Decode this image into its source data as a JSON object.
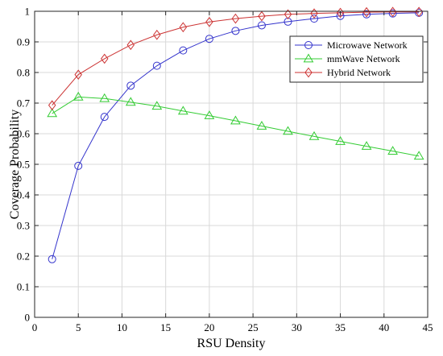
{
  "chart_data": {
    "type": "line",
    "title": "",
    "xlabel": "RSU Density",
    "ylabel": "Coverage Probability",
    "xlim": [
      0,
      45
    ],
    "ylim": [
      0,
      1
    ],
    "xticks": [
      0,
      5,
      10,
      15,
      20,
      25,
      30,
      35,
      40,
      45
    ],
    "yticks": [
      0,
      0.1,
      0.2,
      0.3,
      0.4,
      0.5,
      0.6,
      0.7,
      0.8,
      0.9,
      1
    ],
    "grid": true,
    "legend_position": "top-right",
    "x": [
      2,
      5,
      8,
      11,
      14,
      17,
      20,
      23,
      26,
      29,
      32,
      35,
      38,
      41,
      44
    ],
    "series": [
      {
        "name": "Microwave Network",
        "color": "#3333cc",
        "marker": "circle",
        "values": [
          0.19,
          0.495,
          0.655,
          0.757,
          0.822,
          0.872,
          0.91,
          0.936,
          0.954,
          0.966,
          0.976,
          0.985,
          0.99,
          0.993,
          0.995
        ]
      },
      {
        "name": "mmWave Network",
        "color": "#33cc33",
        "marker": "triangle",
        "values": [
          0.666,
          0.72,
          0.715,
          0.703,
          0.69,
          0.674,
          0.659,
          0.642,
          0.625,
          0.608,
          0.591,
          0.575,
          0.559,
          0.543,
          0.527
        ]
      },
      {
        "name": "Hybrid Network",
        "color": "#cc3333",
        "marker": "diamond",
        "values": [
          0.693,
          0.793,
          0.845,
          0.89,
          0.923,
          0.948,
          0.965,
          0.976,
          0.984,
          0.99,
          0.993,
          0.995,
          0.997,
          0.998,
          0.998
        ]
      }
    ]
  }
}
